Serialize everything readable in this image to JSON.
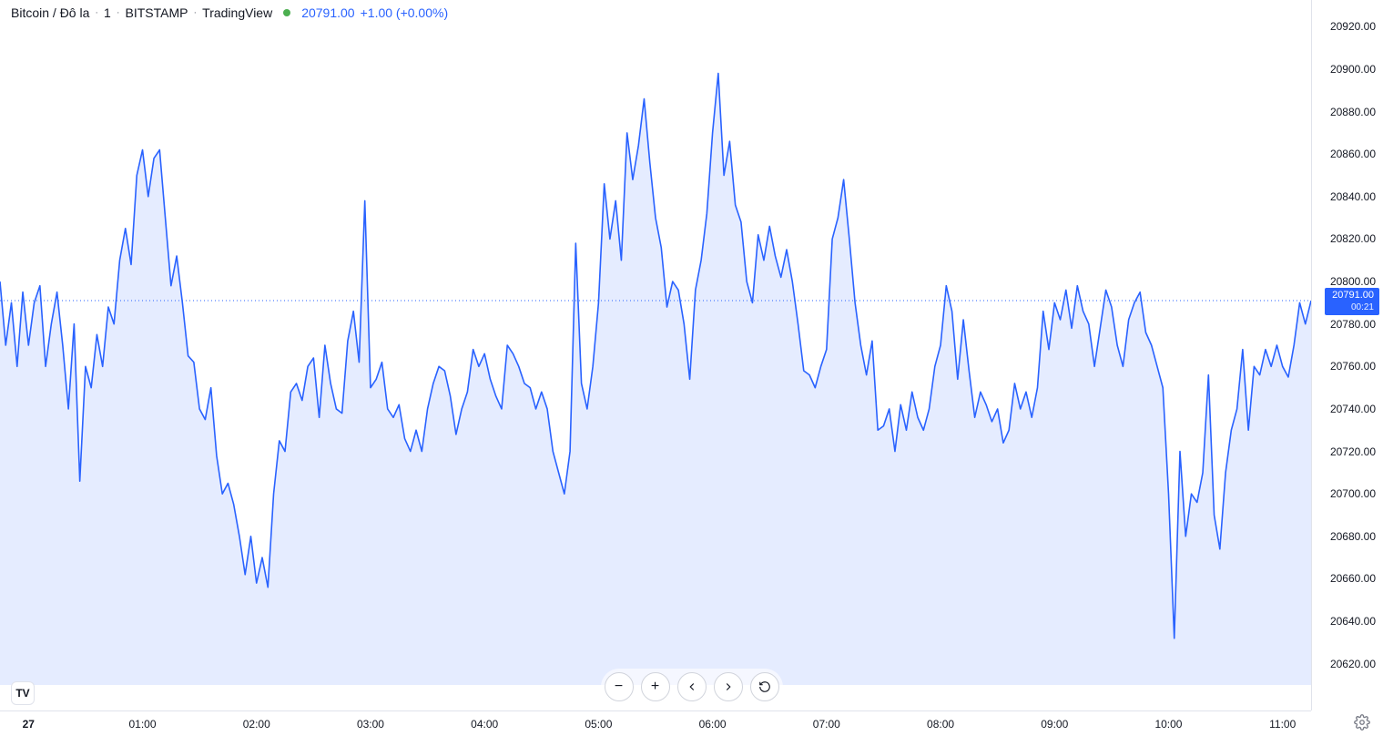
{
  "header": {
    "symbol": "Bitcoin / Đô la",
    "interval": "1",
    "exchange": "BITSTAMP",
    "brand": "TradingView",
    "status_color": "#4caf50",
    "price": "20791.00",
    "change": "+1.00 (+0.00%)"
  },
  "chart": {
    "type": "area",
    "line_color": "#2962ff",
    "fill_color": "rgba(41,98,255,0.12)",
    "background_color": "#ffffff",
    "current_price": 20791.0,
    "countdown": "00:21",
    "price_line_color": "#2962ff",
    "y_axis": {
      "min": 20610,
      "max": 20930,
      "ticks": [
        20620,
        20640,
        20660,
        20680,
        20700,
        20720,
        20740,
        20760,
        20780,
        20800,
        20820,
        20840,
        20860,
        20880,
        20900,
        20920
      ]
    },
    "x_axis": {
      "min": 0,
      "max": 690,
      "ticks": [
        {
          "pos": 15,
          "label": "27",
          "bold": true
        },
        {
          "pos": 75,
          "label": "01:00"
        },
        {
          "pos": 135,
          "label": "02:00"
        },
        {
          "pos": 195,
          "label": "03:00"
        },
        {
          "pos": 255,
          "label": "04:00"
        },
        {
          "pos": 315,
          "label": "05:00"
        },
        {
          "pos": 375,
          "label": "06:00"
        },
        {
          "pos": 435,
          "label": "07:00"
        },
        {
          "pos": 495,
          "label": "08:00"
        },
        {
          "pos": 555,
          "label": "09:00"
        },
        {
          "pos": 615,
          "label": "10:00"
        },
        {
          "pos": 675,
          "label": "11:00"
        }
      ]
    },
    "series": [
      [
        0,
        20800
      ],
      [
        3,
        20770
      ],
      [
        6,
        20790
      ],
      [
        9,
        20760
      ],
      [
        12,
        20795
      ],
      [
        15,
        20770
      ],
      [
        18,
        20790
      ],
      [
        21,
        20798
      ],
      [
        24,
        20760
      ],
      [
        27,
        20780
      ],
      [
        30,
        20795
      ],
      [
        33,
        20770
      ],
      [
        36,
        20740
      ],
      [
        39,
        20780
      ],
      [
        42,
        20706
      ],
      [
        45,
        20760
      ],
      [
        48,
        20750
      ],
      [
        51,
        20775
      ],
      [
        54,
        20760
      ],
      [
        57,
        20788
      ],
      [
        60,
        20780
      ],
      [
        63,
        20810
      ],
      [
        66,
        20825
      ],
      [
        69,
        20808
      ],
      [
        72,
        20850
      ],
      [
        75,
        20862
      ],
      [
        78,
        20840
      ],
      [
        81,
        20858
      ],
      [
        84,
        20862
      ],
      [
        87,
        20830
      ],
      [
        90,
        20798
      ],
      [
        93,
        20812
      ],
      [
        96,
        20790
      ],
      [
        99,
        20765
      ],
      [
        102,
        20762
      ],
      [
        105,
        20740
      ],
      [
        108,
        20735
      ],
      [
        111,
        20750
      ],
      [
        114,
        20718
      ],
      [
        117,
        20700
      ],
      [
        120,
        20705
      ],
      [
        123,
        20695
      ],
      [
        126,
        20680
      ],
      [
        129,
        20662
      ],
      [
        132,
        20680
      ],
      [
        135,
        20658
      ],
      [
        138,
        20670
      ],
      [
        141,
        20656
      ],
      [
        144,
        20700
      ],
      [
        147,
        20725
      ],
      [
        150,
        20720
      ],
      [
        153,
        20748
      ],
      [
        156,
        20752
      ],
      [
        159,
        20744
      ],
      [
        162,
        20760
      ],
      [
        165,
        20764
      ],
      [
        168,
        20736
      ],
      [
        171,
        20770
      ],
      [
        174,
        20752
      ],
      [
        177,
        20740
      ],
      [
        180,
        20738
      ],
      [
        183,
        20772
      ],
      [
        186,
        20786
      ],
      [
        189,
        20762
      ],
      [
        192,
        20838
      ],
      [
        195,
        20750
      ],
      [
        198,
        20754
      ],
      [
        201,
        20762
      ],
      [
        204,
        20740
      ],
      [
        207,
        20736
      ],
      [
        210,
        20742
      ],
      [
        213,
        20726
      ],
      [
        216,
        20720
      ],
      [
        219,
        20730
      ],
      [
        222,
        20720
      ],
      [
        225,
        20740
      ],
      [
        228,
        20752
      ],
      [
        231,
        20760
      ],
      [
        234,
        20758
      ],
      [
        237,
        20746
      ],
      [
        240,
        20728
      ],
      [
        243,
        20740
      ],
      [
        246,
        20748
      ],
      [
        249,
        20768
      ],
      [
        252,
        20760
      ],
      [
        255,
        20766
      ],
      [
        258,
        20754
      ],
      [
        261,
        20746
      ],
      [
        264,
        20740
      ],
      [
        267,
        20770
      ],
      [
        270,
        20766
      ],
      [
        273,
        20760
      ],
      [
        276,
        20752
      ],
      [
        279,
        20750
      ],
      [
        282,
        20740
      ],
      [
        285,
        20748
      ],
      [
        288,
        20740
      ],
      [
        291,
        20720
      ],
      [
        294,
        20710
      ],
      [
        297,
        20700
      ],
      [
        300,
        20720
      ],
      [
        303,
        20818
      ],
      [
        306,
        20752
      ],
      [
        309,
        20740
      ],
      [
        312,
        20760
      ],
      [
        315,
        20790
      ],
      [
        318,
        20846
      ],
      [
        321,
        20820
      ],
      [
        324,
        20838
      ],
      [
        327,
        20810
      ],
      [
        330,
        20870
      ],
      [
        333,
        20848
      ],
      [
        336,
        20864
      ],
      [
        339,
        20886
      ],
      [
        342,
        20856
      ],
      [
        345,
        20830
      ],
      [
        348,
        20816
      ],
      [
        351,
        20788
      ],
      [
        354,
        20800
      ],
      [
        357,
        20796
      ],
      [
        360,
        20780
      ],
      [
        363,
        20754
      ],
      [
        366,
        20796
      ],
      [
        369,
        20810
      ],
      [
        372,
        20832
      ],
      [
        375,
        20870
      ],
      [
        378,
        20898
      ],
      [
        381,
        20850
      ],
      [
        384,
        20866
      ],
      [
        387,
        20836
      ],
      [
        390,
        20828
      ],
      [
        393,
        20800
      ],
      [
        396,
        20790
      ],
      [
        399,
        20822
      ],
      [
        402,
        20810
      ],
      [
        405,
        20826
      ],
      [
        408,
        20812
      ],
      [
        411,
        20802
      ],
      [
        414,
        20815
      ],
      [
        417,
        20800
      ],
      [
        420,
        20780
      ],
      [
        423,
        20758
      ],
      [
        426,
        20756
      ],
      [
        429,
        20750
      ],
      [
        432,
        20760
      ],
      [
        435,
        20768
      ],
      [
        438,
        20820
      ],
      [
        441,
        20830
      ],
      [
        444,
        20848
      ],
      [
        447,
        20820
      ],
      [
        450,
        20790
      ],
      [
        453,
        20770
      ],
      [
        456,
        20756
      ],
      [
        459,
        20772
      ],
      [
        462,
        20730
      ],
      [
        465,
        20732
      ],
      [
        468,
        20740
      ],
      [
        471,
        20720
      ],
      [
        474,
        20742
      ],
      [
        477,
        20730
      ],
      [
        480,
        20748
      ],
      [
        483,
        20736
      ],
      [
        486,
        20730
      ],
      [
        489,
        20740
      ],
      [
        492,
        20760
      ],
      [
        495,
        20770
      ],
      [
        498,
        20798
      ],
      [
        501,
        20786
      ],
      [
        504,
        20754
      ],
      [
        507,
        20782
      ],
      [
        510,
        20758
      ],
      [
        513,
        20736
      ],
      [
        516,
        20748
      ],
      [
        519,
        20742
      ],
      [
        522,
        20734
      ],
      [
        525,
        20740
      ],
      [
        528,
        20724
      ],
      [
        531,
        20730
      ],
      [
        534,
        20752
      ],
      [
        537,
        20740
      ],
      [
        540,
        20748
      ],
      [
        543,
        20736
      ],
      [
        546,
        20750
      ],
      [
        549,
        20786
      ],
      [
        552,
        20768
      ],
      [
        555,
        20790
      ],
      [
        558,
        20782
      ],
      [
        561,
        20796
      ],
      [
        564,
        20778
      ],
      [
        567,
        20798
      ],
      [
        570,
        20786
      ],
      [
        573,
        20780
      ],
      [
        576,
        20760
      ],
      [
        579,
        20778
      ],
      [
        582,
        20796
      ],
      [
        585,
        20788
      ],
      [
        588,
        20770
      ],
      [
        591,
        20760
      ],
      [
        594,
        20782
      ],
      [
        597,
        20790
      ],
      [
        600,
        20795
      ],
      [
        603,
        20776
      ],
      [
        606,
        20770
      ],
      [
        609,
        20760
      ],
      [
        612,
        20750
      ],
      [
        615,
        20700
      ],
      [
        618,
        20632
      ],
      [
        621,
        20720
      ],
      [
        624,
        20680
      ],
      [
        627,
        20700
      ],
      [
        630,
        20696
      ],
      [
        633,
        20710
      ],
      [
        636,
        20756
      ],
      [
        639,
        20690
      ],
      [
        642,
        20674
      ],
      [
        645,
        20710
      ],
      [
        648,
        20730
      ],
      [
        651,
        20740
      ],
      [
        654,
        20768
      ],
      [
        657,
        20730
      ],
      [
        660,
        20760
      ],
      [
        663,
        20756
      ],
      [
        666,
        20768
      ],
      [
        669,
        20760
      ],
      [
        672,
        20770
      ],
      [
        675,
        20760
      ],
      [
        678,
        20755
      ],
      [
        681,
        20770
      ],
      [
        684,
        20790
      ],
      [
        687,
        20780
      ],
      [
        690,
        20791
      ]
    ]
  },
  "icons": {
    "logo": "TV",
    "zoom_out": "−",
    "zoom_in": "+"
  }
}
